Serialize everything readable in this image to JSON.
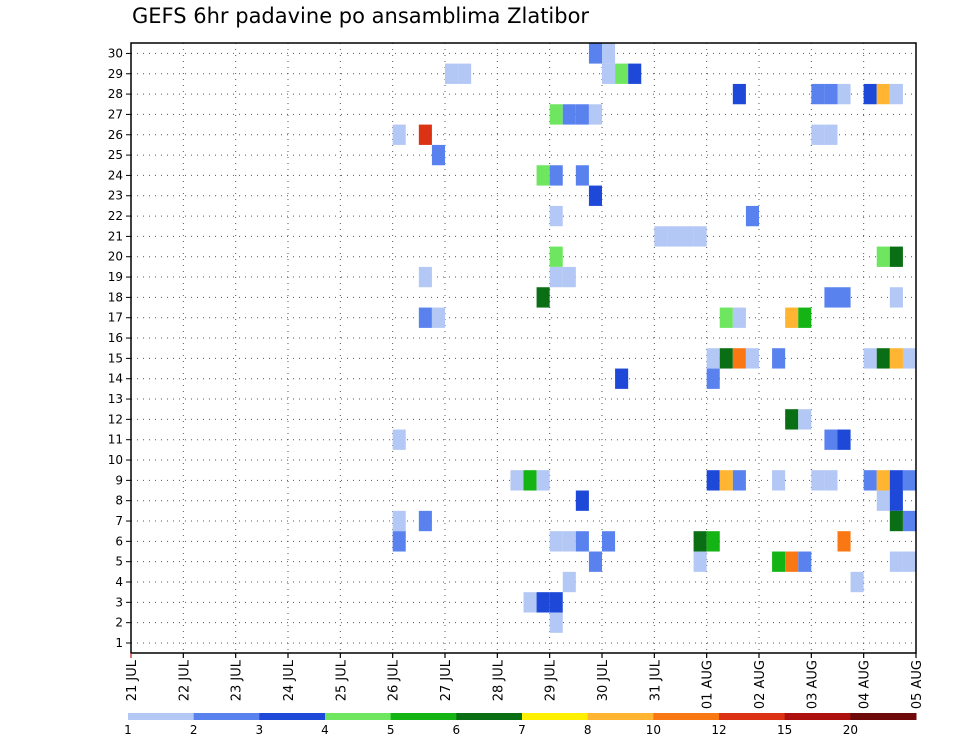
{
  "chart_data": {
    "type": "heatmap",
    "title": "GEFS 6hr padavine po ansamblima Zlatibor",
    "y_tick_labels": [
      "1",
      "2",
      "3",
      "4",
      "5",
      "6",
      "7",
      "8",
      "9",
      "10",
      "11",
      "12",
      "13",
      "14",
      "15",
      "16",
      "17",
      "18",
      "19",
      "20",
      "21",
      "22",
      "23",
      "24",
      "25",
      "26",
      "27",
      "28",
      "29",
      "30"
    ],
    "x_tick_labels": [
      "21 JUL",
      "22 JUL",
      "23 JUL",
      "24 JUL",
      "25 JUL",
      "26 JUL",
      "27 JUL",
      "28 JUL",
      "29 JUL",
      "30 JUL",
      "31 JUL",
      "01 AUG",
      "02 AUG",
      "03 AUG",
      "04 AUG",
      "05 AUG"
    ],
    "xlim_days": [
      0,
      15
    ],
    "ylim": [
      0,
      30.5
    ],
    "grid": true,
    "legend": {
      "placement": "bottom",
      "colors": [
        "#b4c8f5",
        "#5a82ee",
        "#1e48d8",
        "#6ee660",
        "#14b414",
        "#0a6e14",
        "#fff000",
        "#ffb432",
        "#fa7814",
        "#dc3214",
        "#ae0f0f",
        "#6e0a0a"
      ],
      "labels": [
        "1",
        "2",
        "3",
        "4",
        "5",
        "6",
        "7",
        "8",
        "10",
        "12",
        "15",
        "20"
      ]
    },
    "levels": [
      "#b4c8f5",
      "#5a82ee",
      "#1e48d8",
      "#6ee660",
      "#14b414",
      "#0a6e14",
      "#fff000",
      "#ffb432",
      "#fa7814",
      "#dc3214",
      "#ae0f0f",
      "#6e0a0a"
    ],
    "cells": [
      [
        30,
        8.75,
        1
      ],
      [
        30,
        9.0,
        0
      ],
      [
        29,
        6.0,
        0
      ],
      [
        29,
        6.25,
        0
      ],
      [
        29,
        9.0,
        0
      ],
      [
        29,
        9.25,
        3
      ],
      [
        29,
        9.5,
        2
      ],
      [
        28,
        11.5,
        2
      ],
      [
        28,
        13.0,
        1
      ],
      [
        28,
        13.25,
        1
      ],
      [
        28,
        13.5,
        0
      ],
      [
        28,
        14.0,
        2
      ],
      [
        28,
        14.25,
        7
      ],
      [
        28,
        14.5,
        0
      ],
      [
        27,
        8.0,
        3
      ],
      [
        27,
        8.25,
        1
      ],
      [
        27,
        8.5,
        1
      ],
      [
        27,
        8.75,
        0
      ],
      [
        26,
        5.0,
        0
      ],
      [
        26,
        5.5,
        9
      ],
      [
        26,
        13.0,
        0
      ],
      [
        26,
        13.25,
        0
      ],
      [
        25,
        5.75,
        1
      ],
      [
        24,
        7.75,
        3
      ],
      [
        24,
        8.0,
        1
      ],
      [
        24,
        8.5,
        1
      ],
      [
        23,
        8.75,
        2
      ],
      [
        22,
        8.0,
        0
      ],
      [
        22,
        11.75,
        1
      ],
      [
        21,
        10.0,
        0
      ],
      [
        21,
        10.25,
        0
      ],
      [
        21,
        10.5,
        0
      ],
      [
        21,
        10.75,
        0
      ],
      [
        20,
        8.0,
        3
      ],
      [
        20,
        14.25,
        3
      ],
      [
        20,
        14.5,
        5
      ],
      [
        19,
        5.5,
        0
      ],
      [
        19,
        8.0,
        0
      ],
      [
        19,
        8.25,
        0
      ],
      [
        18,
        7.75,
        5
      ],
      [
        18,
        13.25,
        1
      ],
      [
        18,
        13.5,
        1
      ],
      [
        18,
        14.5,
        0
      ],
      [
        17,
        5.5,
        1
      ],
      [
        17,
        5.75,
        0
      ],
      [
        17,
        11.25,
        3
      ],
      [
        17,
        11.5,
        0
      ],
      [
        17,
        12.5,
        7
      ],
      [
        17,
        12.75,
        4
      ],
      [
        15,
        11.0,
        0
      ],
      [
        15,
        11.25,
        5
      ],
      [
        15,
        11.5,
        8
      ],
      [
        15,
        11.75,
        0
      ],
      [
        15,
        12.25,
        1
      ],
      [
        15,
        14.0,
        0
      ],
      [
        15,
        14.25,
        5
      ],
      [
        15,
        14.5,
        7
      ],
      [
        15,
        14.75,
        0
      ],
      [
        14,
        9.25,
        2
      ],
      [
        14,
        11.0,
        1
      ],
      [
        12,
        12.5,
        5
      ],
      [
        12,
        12.75,
        0
      ],
      [
        11,
        5.0,
        0
      ],
      [
        11,
        13.25,
        1
      ],
      [
        11,
        13.5,
        2
      ],
      [
        9,
        7.25,
        0
      ],
      [
        9,
        7.5,
        4
      ],
      [
        9,
        7.75,
        0
      ],
      [
        9,
        11.0,
        2
      ],
      [
        9,
        11.25,
        7
      ],
      [
        9,
        11.5,
        1
      ],
      [
        9,
        12.25,
        0
      ],
      [
        9,
        13.0,
        0
      ],
      [
        9,
        13.25,
        0
      ],
      [
        9,
        14.0,
        1
      ],
      [
        9,
        14.25,
        7
      ],
      [
        9,
        14.5,
        2
      ],
      [
        9,
        14.75,
        1
      ],
      [
        8,
        8.5,
        2
      ],
      [
        8,
        14.25,
        0
      ],
      [
        8,
        14.5,
        2
      ],
      [
        7,
        5.0,
        0
      ],
      [
        7,
        5.5,
        1
      ],
      [
        7,
        14.5,
        5
      ],
      [
        7,
        14.75,
        1
      ],
      [
        6,
        5.0,
        1
      ],
      [
        6,
        8.0,
        0
      ],
      [
        6,
        8.25,
        0
      ],
      [
        6,
        8.5,
        1
      ],
      [
        6,
        9.0,
        1
      ],
      [
        6,
        10.75,
        5
      ],
      [
        6,
        11.0,
        4
      ],
      [
        6,
        13.5,
        8
      ],
      [
        5,
        8.75,
        1
      ],
      [
        5,
        10.75,
        0
      ],
      [
        5,
        12.25,
        4
      ],
      [
        5,
        12.5,
        8
      ],
      [
        5,
        12.75,
        1
      ],
      [
        5,
        14.5,
        0
      ],
      [
        5,
        14.75,
        0
      ],
      [
        4,
        8.25,
        0
      ],
      [
        4,
        13.75,
        0
      ],
      [
        3,
        7.5,
        0
      ],
      [
        3,
        7.75,
        2
      ],
      [
        3,
        8.0,
        2
      ],
      [
        2,
        8.0,
        0
      ]
    ]
  }
}
